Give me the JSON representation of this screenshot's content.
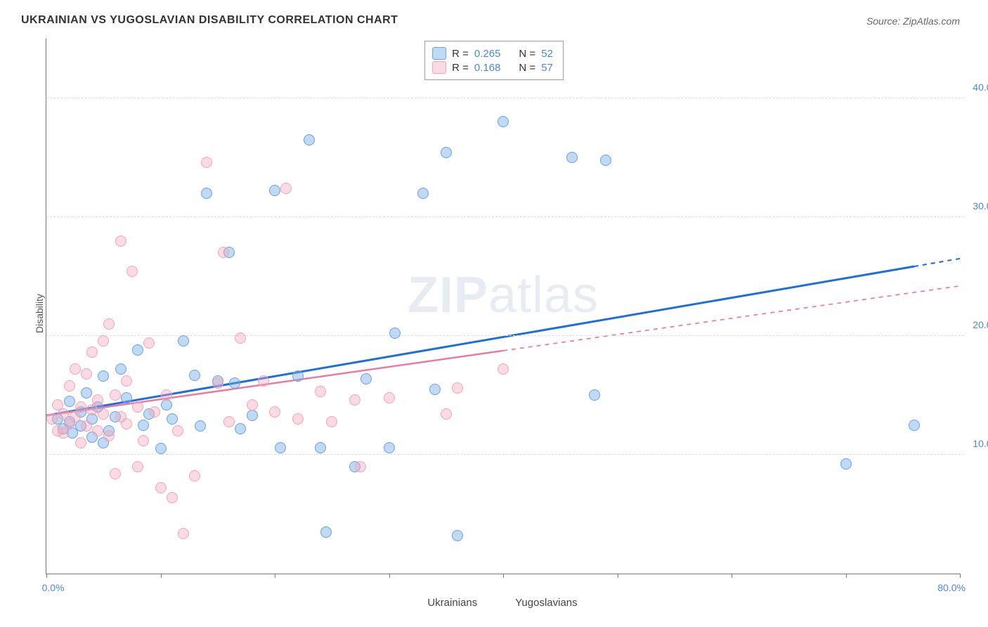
{
  "title": "UKRAINIAN VS YUGOSLAVIAN DISABILITY CORRELATION CHART",
  "source": "Source: ZipAtlas.com",
  "ylabel": "Disability",
  "watermark": "ZIPatlas",
  "chart": {
    "type": "scatter",
    "xlim": [
      0,
      80
    ],
    "ylim": [
      0,
      45
    ],
    "xticks": [
      0,
      10,
      20,
      30,
      40,
      50,
      60,
      70,
      80
    ],
    "yticks": [
      10,
      20,
      30,
      40
    ],
    "xtick_labels": {
      "0": "0.0%",
      "80": "80.0%"
    },
    "ytick_labels": {
      "10": "10.0%",
      "20": "20.0%",
      "30": "30.0%",
      "40": "40.0%"
    },
    "grid_color": "#dddddd",
    "background": "#ffffff",
    "marker_radius": 8,
    "series": [
      {
        "key": "ukr",
        "name": "Ukrainians",
        "marker_fill": "rgba(116,170,232,0.45)",
        "marker_stroke": "#6aa0e0",
        "trend_color": "#1e6fd9",
        "trend_width": 3,
        "R": "0.265",
        "N": "52",
        "trend": {
          "x1": 0,
          "y1": 13.3,
          "x2": 80,
          "y2": 26.5,
          "data_xmax": 76
        },
        "points": [
          [
            1,
            13
          ],
          [
            1.5,
            12.2
          ],
          [
            2,
            12.8
          ],
          [
            2,
            14.5
          ],
          [
            2.3,
            11.8
          ],
          [
            3,
            13.6
          ],
          [
            3,
            12.4
          ],
          [
            3.5,
            15.2
          ],
          [
            4,
            13
          ],
          [
            4,
            11.5
          ],
          [
            4.5,
            14
          ],
          [
            5,
            16.6
          ],
          [
            5.5,
            12
          ],
          [
            6,
            13.2
          ],
          [
            6.5,
            17.2
          ],
          [
            7,
            14.8
          ],
          [
            8,
            18.8
          ],
          [
            8.5,
            12.5
          ],
          [
            9,
            13.4
          ],
          [
            10,
            10.5
          ],
          [
            10.5,
            14.2
          ],
          [
            11,
            13
          ],
          [
            12,
            19.6
          ],
          [
            13,
            16.7
          ],
          [
            13.5,
            12.4
          ],
          [
            14,
            32
          ],
          [
            15,
            16.2
          ],
          [
            16,
            27
          ],
          [
            16.5,
            16
          ],
          [
            17,
            12.2
          ],
          [
            18,
            13.3
          ],
          [
            20,
            32.2
          ],
          [
            20.5,
            10.6
          ],
          [
            22,
            16.6
          ],
          [
            23,
            36.5
          ],
          [
            24,
            10.6
          ],
          [
            24.5,
            3.5
          ],
          [
            27,
            9
          ],
          [
            28,
            16.4
          ],
          [
            30,
            10.6
          ],
          [
            30.5,
            20.2
          ],
          [
            33,
            32
          ],
          [
            34,
            15.5
          ],
          [
            35,
            35.4
          ],
          [
            36,
            3.2
          ],
          [
            40,
            38
          ],
          [
            46,
            35
          ],
          [
            48,
            15
          ],
          [
            49,
            34.8
          ],
          [
            70,
            9.2
          ],
          [
            76,
            12.5
          ],
          [
            5,
            11
          ]
        ]
      },
      {
        "key": "yug",
        "name": "Yugoslavians",
        "marker_fill": "rgba(244,164,184,0.40)",
        "marker_stroke": "#f0a4ba",
        "trend_color": "#ec7ba0",
        "trend_width": 2.5,
        "R": "0.168",
        "N": "57",
        "trend": {
          "x1": 0,
          "y1": 13.3,
          "x2": 80,
          "y2": 24.2,
          "data_xmax": 40
        },
        "points": [
          [
            0.5,
            13
          ],
          [
            1,
            12
          ],
          [
            1,
            14.2
          ],
          [
            1.5,
            13.4
          ],
          [
            1.5,
            11.8
          ],
          [
            2,
            12.6
          ],
          [
            2,
            15.8
          ],
          [
            2.5,
            13.2
          ],
          [
            2.5,
            17.2
          ],
          [
            3,
            14
          ],
          [
            3,
            11
          ],
          [
            3.5,
            16.8
          ],
          [
            3.5,
            12.4
          ],
          [
            4,
            13.8
          ],
          [
            4,
            18.6
          ],
          [
            4.5,
            12
          ],
          [
            4.5,
            14.6
          ],
          [
            5,
            13.4
          ],
          [
            5,
            19.6
          ],
          [
            5.5,
            21
          ],
          [
            5.5,
            11.6
          ],
          [
            6,
            15
          ],
          [
            6,
            8.4
          ],
          [
            6.5,
            13.2
          ],
          [
            6.5,
            28
          ],
          [
            7,
            12.6
          ],
          [
            7,
            16.2
          ],
          [
            7.5,
            25.4
          ],
          [
            8,
            14
          ],
          [
            8,
            9
          ],
          [
            8.5,
            11.2
          ],
          [
            9,
            19.4
          ],
          [
            9.5,
            13.6
          ],
          [
            10,
            7.2
          ],
          [
            10.5,
            15
          ],
          [
            11,
            6.4
          ],
          [
            11.5,
            12
          ],
          [
            12,
            3.4
          ],
          [
            13,
            8.2
          ],
          [
            14,
            34.6
          ],
          [
            15,
            16
          ],
          [
            15.5,
            27
          ],
          [
            16,
            12.8
          ],
          [
            17,
            19.8
          ],
          [
            18,
            14.2
          ],
          [
            19,
            16.2
          ],
          [
            20,
            13.6
          ],
          [
            21,
            32.4
          ],
          [
            22,
            13
          ],
          [
            24,
            15.3
          ],
          [
            25,
            12.8
          ],
          [
            27,
            14.6
          ],
          [
            27.5,
            9
          ],
          [
            30,
            14.8
          ],
          [
            35,
            13.4
          ],
          [
            36,
            15.6
          ],
          [
            40,
            17.2
          ]
        ]
      }
    ]
  },
  "legend_labels": {
    "R": "R =",
    "N": "N ="
  },
  "bottom_legend": [
    {
      "key": "ukr",
      "label": "Ukrainians"
    },
    {
      "key": "yug",
      "label": "Yugoslavians"
    }
  ]
}
